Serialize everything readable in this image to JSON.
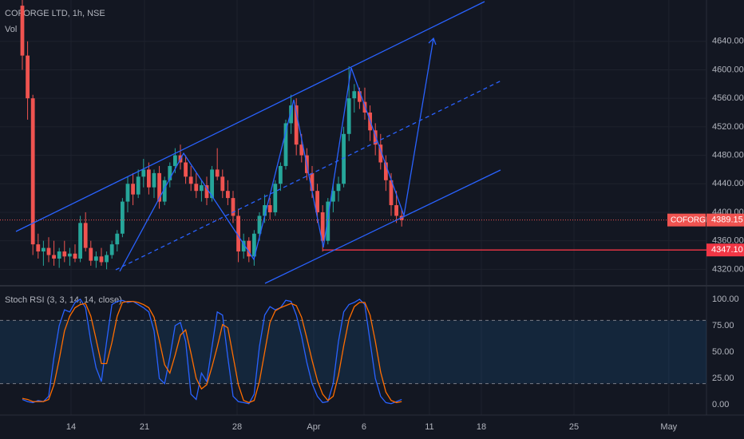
{
  "chart_data": [
    {
      "type": "candlestick",
      "title": "COFORGE LTD, 1h, NSE",
      "subtitle": "Vol",
      "up_color": "#26a69a",
      "down_color": "#ef5350",
      "xlim": [
        -4.24,
        129.85
      ],
      "ylim": [
        4298,
        4698
      ],
      "yticks": [
        {
          "value": 4320,
          "label": "4320.00"
        },
        {
          "value": 4360,
          "label": "4360.00"
        },
        {
          "value": 4400,
          "label": "4400.00"
        },
        {
          "value": 4440,
          "label": "4440.00"
        },
        {
          "value": 4480,
          "label": "4480.00"
        },
        {
          "value": 4520,
          "label": "4520.00"
        },
        {
          "value": 4560,
          "label": "4560.00"
        },
        {
          "value": 4600,
          "label": "4600.00"
        },
        {
          "value": 4640,
          "label": "4640.00"
        }
      ],
      "last_price": {
        "name": "COFORGE",
        "value": 4389.15,
        "label": "4389.15"
      },
      "level": {
        "value": 4347.1,
        "label": "4347.10"
      },
      "ohlc": [
        [
          4690,
          4698,
          4600,
          4620
        ],
        [
          4620,
          4640,
          4530,
          4560
        ],
        [
          4560,
          4565,
          4340,
          4355
        ],
        [
          4355,
          4370,
          4335,
          4345
        ],
        [
          4345,
          4360,
          4325,
          4350
        ],
        [
          4350,
          4365,
          4330,
          4340
        ],
        [
          4340,
          4360,
          4325,
          4335
        ],
        [
          4335,
          4350,
          4322,
          4345
        ],
        [
          4345,
          4360,
          4330,
          4338
        ],
        [
          4338,
          4350,
          4325,
          4342
        ],
        [
          4342,
          4355,
          4330,
          4335
        ],
        [
          4335,
          4395,
          4330,
          4385
        ],
        [
          4385,
          4400,
          4345,
          4350
        ],
        [
          4350,
          4360,
          4325,
          4332
        ],
        [
          4332,
          4345,
          4322,
          4338
        ],
        [
          4338,
          4350,
          4325,
          4330
        ],
        [
          4330,
          4345,
          4320,
          4340
        ],
        [
          4340,
          4360,
          4335,
          4355
        ],
        [
          4355,
          4375,
          4345,
          4370
        ],
        [
          4370,
          4420,
          4365,
          4415
        ],
        [
          4415,
          4450,
          4400,
          4440
        ],
        [
          4440,
          4455,
          4410,
          4425
        ],
        [
          4425,
          4460,
          4420,
          4450
        ],
        [
          4450,
          4475,
          4435,
          4460
        ],
        [
          4460,
          4470,
          4425,
          4435
        ],
        [
          4435,
          4460,
          4420,
          4455
        ],
        [
          4455,
          4465,
          4405,
          4415
        ],
        [
          4415,
          4450,
          4410,
          4445
        ],
        [
          4445,
          4470,
          4435,
          4465
        ],
        [
          4465,
          4490,
          4455,
          4480
        ],
        [
          4480,
          4495,
          4460,
          4470
        ],
        [
          4470,
          4480,
          4440,
          4450
        ],
        [
          4450,
          4465,
          4430,
          4440
        ],
        [
          4440,
          4455,
          4420,
          4430
        ],
        [
          4430,
          4445,
          4415,
          4438
        ],
        [
          4438,
          4450,
          4410,
          4420
        ],
        [
          4420,
          4465,
          4415,
          4460
        ],
        [
          4460,
          4490,
          4445,
          4450
        ],
        [
          4450,
          4460,
          4420,
          4430
        ],
        [
          4430,
          4445,
          4410,
          4420
        ],
        [
          4420,
          4430,
          4385,
          4395
        ],
        [
          4395,
          4405,
          4330,
          4345
        ],
        [
          4345,
          4370,
          4335,
          4360
        ],
        [
          4360,
          4365,
          4330,
          4338
        ],
        [
          4338,
          4375,
          4325,
          4370
        ],
        [
          4370,
          4400,
          4360,
          4395
        ],
        [
          4395,
          4425,
          4385,
          4410
        ],
        [
          4410,
          4420,
          4390,
          4400
        ],
        [
          4400,
          4445,
          4395,
          4440
        ],
        [
          4440,
          4470,
          4430,
          4465
        ],
        [
          4465,
          4530,
          4460,
          4525
        ],
        [
          4525,
          4565,
          4510,
          4550
        ],
        [
          4550,
          4560,
          4480,
          4495
        ],
        [
          4495,
          4510,
          4470,
          4480
        ],
        [
          4480,
          4490,
          4445,
          4455
        ],
        [
          4455,
          4465,
          4420,
          4430
        ],
        [
          4430,
          4440,
          4385,
          4400
        ],
        [
          4400,
          4410,
          4345,
          4360
        ],
        [
          4360,
          4420,
          4355,
          4415
        ],
        [
          4415,
          4440,
          4400,
          4430
        ],
        [
          4430,
          4450,
          4415,
          4440
        ],
        [
          4440,
          4520,
          4435,
          4510
        ],
        [
          4510,
          4605,
          4500,
          4560
        ],
        [
          4560,
          4580,
          4540,
          4570
        ],
        [
          4570,
          4575,
          4545,
          4555
        ],
        [
          4555,
          4575,
          4530,
          4540
        ],
        [
          4540,
          4550,
          4500,
          4515
        ],
        [
          4515,
          4525,
          4480,
          4495
        ],
        [
          4495,
          4510,
          4460,
          4470
        ],
        [
          4470,
          4480,
          4430,
          4445
        ],
        [
          4445,
          4455,
          4395,
          4410
        ],
        [
          4410,
          4430,
          4385,
          4395
        ],
        [
          4395,
          4405,
          4380,
          4389.15
        ]
      ]
    },
    {
      "type": "line",
      "title": "Stoch RSI (3, 3, 14, 14, close)",
      "xlim": [
        -4.24,
        129.85
      ],
      "ylim": [
        -9.8,
        109.8
      ],
      "band": [
        20,
        80
      ],
      "yticks": [
        {
          "value": 0,
          "label": "0.00"
        },
        {
          "value": 25,
          "label": "25.00"
        },
        {
          "value": 50,
          "label": "50.00"
        },
        {
          "value": 75,
          "label": "75.00"
        },
        {
          "value": 100,
          "label": "100.00"
        }
      ],
      "xticks": [
        {
          "value": 9.24,
          "label": "14"
        },
        {
          "value": 23.18,
          "label": "21"
        },
        {
          "value": 40.76,
          "label": "28"
        },
        {
          "value": 55.3,
          "label": "Apr"
        },
        {
          "value": 64.85,
          "label": "6"
        },
        {
          "value": 77.27,
          "label": "11"
        },
        {
          "value": 87.12,
          "label": "18"
        },
        {
          "value": 104.7,
          "label": "25"
        },
        {
          "value": 122.7,
          "label": "May"
        }
      ],
      "series": [
        {
          "color": "#2962ff",
          "values": [
            5,
            3,
            2,
            4,
            3,
            8,
            45,
            75,
            90,
            88,
            97,
            100,
            92,
            60,
            35,
            22,
            60,
            95,
            98,
            99,
            97,
            98,
            95,
            92,
            88,
            70,
            25,
            20,
            45,
            75,
            78,
            60,
            10,
            5,
            30,
            22,
            55,
            88,
            85,
            45,
            8,
            3,
            2,
            1,
            10,
            55,
            85,
            93,
            90,
            92,
            99,
            98,
            85,
            65,
            40,
            20,
            8,
            2,
            3,
            20,
            60,
            88,
            95,
            97,
            100,
            95,
            60,
            25,
            8,
            2,
            1,
            3,
            5
          ]
        },
        {
          "color": "#ff6d00",
          "values": [
            6,
            5,
            3,
            3,
            3,
            5,
            19,
            43,
            70,
            84,
            92,
            95,
            96,
            84,
            62,
            39,
            39,
            59,
            84,
            97,
            98,
            98,
            97,
            95,
            92,
            83,
            61,
            38,
            30,
            47,
            66,
            71,
            49,
            25,
            15,
            19,
            36,
            55,
            76,
            73,
            46,
            19,
            4,
            2,
            4,
            22,
            50,
            78,
            89,
            92,
            94,
            96,
            94,
            83,
            63,
            42,
            23,
            10,
            4,
            8,
            28,
            56,
            81,
            93,
            97,
            97,
            85,
            60,
            31,
            12,
            4,
            2,
            3
          ]
        }
      ]
    }
  ]
}
